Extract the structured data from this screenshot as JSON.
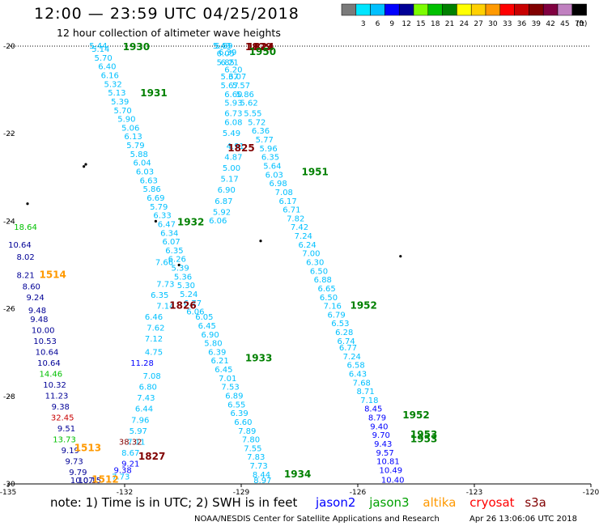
{
  "title": "12:00 — 23:59 UTC 04/25/2018",
  "subtitle": "12 hour collection of altimeter wave heights",
  "legend": {
    "unit": "(ft)",
    "swatches": [
      {
        "color": "#7a7a7a",
        "label": ""
      },
      {
        "color": "#00e5ff",
        "label": "3"
      },
      {
        "color": "#00c0ff",
        "label": "6"
      },
      {
        "color": "#0000ff",
        "label": "9"
      },
      {
        "color": "#000096",
        "label": "12"
      },
      {
        "color": "#7cfc00",
        "label": "15"
      },
      {
        "color": "#00c000",
        "label": "18"
      },
      {
        "color": "#008000",
        "label": "21"
      },
      {
        "color": "#ffff00",
        "label": "24"
      },
      {
        "color": "#ffd000",
        "label": "27"
      },
      {
        "color": "#ff9900",
        "label": "30"
      },
      {
        "color": "#ff0000",
        "label": "33"
      },
      {
        "color": "#c80000",
        "label": "36"
      },
      {
        "color": "#800000",
        "label": "39"
      },
      {
        "color": "#800040",
        "label": "42"
      },
      {
        "color": "#c080c0",
        "label": "45"
      },
      {
        "color": "#000000",
        "label": "70"
      }
    ]
  },
  "chart_data": {
    "type": "scatter",
    "axes": {
      "lon_range": [
        -135,
        -120
      ],
      "lat_range": [
        -30,
        -20
      ],
      "lon_ticks": [
        "-135",
        "-132",
        "-129",
        "-126",
        "-123",
        "-120"
      ],
      "lat_ticks": [
        "-20",
        "-22",
        "-24",
        "-26",
        "-28",
        "-30"
      ]
    },
    "islands": [
      [
        -133.0,
        -22.7
      ],
      [
        -133.05,
        -22.75
      ],
      [
        -131.2,
        -24.0
      ],
      [
        -128.5,
        -24.45
      ],
      [
        -134.5,
        -23.6
      ],
      [
        -124.9,
        -24.8
      ],
      [
        -130.6,
        -25.0
      ]
    ],
    "time_labels": [
      {
        "text": "1930",
        "lon": -131.7,
        "lat": -20.03,
        "color": "#008000"
      },
      {
        "text": "1931",
        "lon": -131.25,
        "lat": -21.15,
        "color": "#008000"
      },
      {
        "text": "1932",
        "lon": -130.3,
        "lat": -24.09,
        "color": "#008000"
      },
      {
        "text": "1933",
        "lon": -128.55,
        "lat": -27.2,
        "color": "#008000"
      },
      {
        "text": "1934",
        "lon": -127.55,
        "lat": -29.85,
        "color": "#008000"
      },
      {
        "text": "1829",
        "lon": -128.55,
        "lat": -20.03,
        "color": "#800000"
      },
      {
        "text": "1824",
        "lon": -128.5,
        "lat": -20.03,
        "color": "#800000"
      },
      {
        "text": "1950",
        "lon": -128.45,
        "lat": -20.2,
        "color": "#008000"
      },
      {
        "text": "1825",
        "lon": -129.0,
        "lat": -22.4,
        "color": "#800000"
      },
      {
        "text": "1951",
        "lon": -127.1,
        "lat": -22.95,
        "color": "#008000"
      },
      {
        "text": "1952",
        "lon": -125.85,
        "lat": -26.0,
        "color": "#008000"
      },
      {
        "text": "1952",
        "lon": -124.5,
        "lat": -28.5,
        "color": "#008000"
      },
      {
        "text": "1953",
        "lon": -124.3,
        "lat": -28.95,
        "color": "#008000"
      },
      {
        "text": "1953",
        "lon": -124.3,
        "lat": -29.05,
        "color": "#008000"
      },
      {
        "text": "1826",
        "lon": -130.5,
        "lat": -26.0,
        "color": "#800000"
      },
      {
        "text": "1827",
        "lon": -131.3,
        "lat": -29.45,
        "color": "#800000"
      },
      {
        "text": "1514",
        "lon": -133.85,
        "lat": -25.3,
        "color": "#ff9900"
      },
      {
        "text": "1513",
        "lon": -132.95,
        "lat": -29.25,
        "color": "#ff9900"
      },
      {
        "text": "1512",
        "lon": -132.5,
        "lat": -29.97,
        "color": "#ff9900"
      }
    ],
    "tracks": [
      {
        "name": "jason3 A",
        "color": "#00c0ff",
        "points": [
          [
            "5.44",
            -132.68,
            -20.03
          ],
          [
            "5.14",
            -132.62,
            -20.13
          ],
          [
            "5.70",
            -132.55,
            -20.33
          ],
          [
            "6.40",
            -132.45,
            -20.53
          ],
          [
            "6.16",
            -132.38,
            -20.73
          ],
          [
            "5.32",
            -132.3,
            -20.93
          ],
          [
            "5.13",
            -132.2,
            -21.13
          ],
          [
            "5.39",
            -132.12,
            -21.33
          ],
          [
            "5.70",
            -132.05,
            -21.53
          ],
          [
            "5.90",
            -131.95,
            -21.73
          ],
          [
            "5.06",
            -131.85,
            -21.93
          ],
          [
            "6.13",
            -131.78,
            -22.13
          ],
          [
            "5.79",
            -131.72,
            -22.33
          ],
          [
            "5.88",
            -131.63,
            -22.53
          ],
          [
            "6.04",
            -131.55,
            -22.73
          ],
          [
            "6.03",
            -131.48,
            -22.93
          ],
          [
            "6.63",
            -131.38,
            -23.13
          ],
          [
            "5.86",
            -131.3,
            -23.33
          ],
          [
            "6.69",
            -131.2,
            -23.53
          ],
          [
            "5.79",
            -131.12,
            -23.73
          ],
          [
            "6.33",
            -131.03,
            -23.93
          ],
          [
            "6.47",
            -130.92,
            -24.13
          ],
          [
            "6.34",
            -130.85,
            -24.33
          ],
          [
            "6.07",
            -130.8,
            -24.53
          ],
          [
            "6.35",
            -130.72,
            -24.73
          ],
          [
            "6.26",
            -130.65,
            -24.93
          ],
          [
            "5.39",
            -130.57,
            -25.13
          ],
          [
            "5.36",
            -130.5,
            -25.33
          ],
          [
            "5.30",
            -130.42,
            -25.53
          ],
          [
            "5.24",
            -130.35,
            -25.73
          ],
          [
            "6.77",
            -130.25,
            -25.93
          ],
          [
            "6.06",
            -130.18,
            -26.13
          ],
          [
            "6.05",
            -129.95,
            -26.25
          ],
          [
            "6.45",
            -129.88,
            -26.45
          ],
          [
            "6.90",
            -129.8,
            -26.65
          ],
          [
            "5.80",
            -129.72,
            -26.85
          ],
          [
            "6.39",
            -129.62,
            -27.05
          ],
          [
            "6.21",
            -129.55,
            -27.25
          ],
          [
            "6.45",
            -129.45,
            -27.45
          ],
          [
            "7.01",
            -129.35,
            -27.65
          ],
          [
            "7.53",
            -129.28,
            -27.85
          ],
          [
            "6.89",
            -129.18,
            -28.05
          ],
          [
            "6.55",
            -129.12,
            -28.25
          ],
          [
            "6.39",
            -129.05,
            -28.45
          ],
          [
            "6.60",
            -128.95,
            -28.65
          ],
          [
            "7.89",
            -128.85,
            -28.85
          ],
          [
            "7.80",
            -128.75,
            -29.05
          ],
          [
            "7.55",
            -128.7,
            -29.25
          ],
          [
            "7.83",
            -128.62,
            -29.45
          ],
          [
            "7.73",
            -128.55,
            -29.65
          ],
          [
            "8.44",
            -128.48,
            -29.85
          ],
          [
            "8.97",
            -128.45,
            -30.03
          ]
        ]
      },
      {
        "name": "jason3 B",
        "color": "#00c0ff",
        "points": [
          [
            "5.49",
            -129.5,
            -20.03
          ],
          [
            "5.59",
            -129.45,
            -20.03
          ],
          [
            "6.05",
            -129.4,
            -20.23
          ],
          [
            "6.39",
            -129.35,
            -20.2
          ],
          [
            "5.85",
            -129.4,
            -20.43
          ],
          [
            "6.21",
            -129.3,
            -20.43
          ],
          [
            "6.20",
            -129.2,
            -20.6
          ],
          [
            "5.37",
            -129.3,
            -20.76
          ],
          [
            "6.07",
            -129.1,
            -20.76
          ],
          [
            "5.67",
            -129.3,
            -20.96
          ],
          [
            "5.57",
            -129.0,
            -20.96
          ],
          [
            "6.60",
            -129.2,
            -21.16
          ],
          [
            "5.86",
            -128.9,
            -21.16
          ],
          [
            "5.93",
            -129.2,
            -21.36
          ],
          [
            "5.62",
            -128.8,
            -21.36
          ],
          [
            "6.73",
            -129.2,
            -21.6
          ],
          [
            "5.55",
            -128.7,
            -21.6
          ],
          [
            "6.08",
            -129.2,
            -21.8
          ],
          [
            "5.72",
            -128.6,
            -21.8
          ],
          [
            "5.49",
            -129.25,
            -22.05
          ],
          [
            "6.36",
            -128.5,
            -22.0
          ],
          [
            "4.91",
            -129.15,
            -22.35
          ],
          [
            "5.77",
            -128.4,
            -22.2
          ],
          [
            "4.87",
            -129.2,
            -22.6
          ],
          [
            "5.96",
            -128.3,
            -22.4
          ],
          [
            "5.00",
            -129.25,
            -22.85
          ],
          [
            "6.35",
            -128.25,
            -22.6
          ],
          [
            "5.17",
            -129.3,
            -23.1
          ],
          [
            "5.64",
            -128.2,
            -22.8
          ],
          [
            "6.90",
            -129.38,
            -23.35
          ],
          [
            "6.03",
            -128.15,
            -23.0
          ],
          [
            "6.87",
            -129.45,
            -23.6
          ],
          [
            "6.98",
            -128.05,
            -23.2
          ],
          [
            "5.92",
            -129.5,
            -23.85
          ],
          [
            "7.08",
            -127.9,
            -23.4
          ],
          [
            "6.06",
            -129.6,
            -24.05
          ],
          [
            "6.17",
            -127.8,
            -23.6
          ],
          [
            "6.71",
            -127.7,
            -23.8
          ],
          [
            "7.82",
            -127.6,
            -24.0
          ],
          [
            "7.42",
            -127.5,
            -24.2
          ],
          [
            "7.24",
            -127.4,
            -24.4
          ],
          [
            "6.24",
            -127.3,
            -24.6
          ],
          [
            "7.00",
            -127.2,
            -24.8
          ],
          [
            "6.30",
            -127.1,
            -25.0
          ],
          [
            "6.50",
            -127.0,
            -25.2
          ],
          [
            "6.88",
            -126.9,
            -25.4
          ],
          [
            "6.65",
            -126.8,
            -25.6
          ],
          [
            "6.50",
            -126.75,
            -25.8
          ],
          [
            "7.16",
            -126.65,
            -26.0
          ],
          [
            "6.79",
            -126.55,
            -26.2
          ],
          [
            "6.53",
            -126.45,
            -26.4
          ],
          [
            "6.28",
            -126.35,
            -26.6
          ],
          [
            "6.74",
            -126.3,
            -26.8
          ],
          [
            "6.77",
            -126.25,
            -26.95
          ],
          [
            "7.24",
            -126.15,
            -27.15
          ],
          [
            "6.58",
            -126.05,
            -27.35
          ],
          [
            "6.43",
            -126.0,
            -27.55
          ],
          [
            "7.68",
            -125.9,
            -27.75
          ],
          [
            "8.71",
            -125.8,
            -27.95
          ],
          [
            "7.18",
            -125.7,
            -28.15
          ]
        ]
      },
      {
        "name": "jason2",
        "color": "#0000ff",
        "points": [
          [
            "8.45",
            -125.6,
            -28.35
          ],
          [
            "8.79",
            -125.5,
            -28.55
          ],
          [
            "9.40",
            -125.45,
            -28.75
          ],
          [
            "9.70",
            -125.4,
            -28.95
          ],
          [
            "9.43",
            -125.35,
            -29.15
          ],
          [
            "9.57",
            -125.3,
            -29.35
          ],
          [
            "10.81",
            -125.22,
            -29.55
          ],
          [
            "10.49",
            -125.15,
            -29.75
          ],
          [
            "10.40",
            -125.1,
            -29.97
          ]
        ]
      },
      {
        "name": "jason3 C",
        "color": "#00c0ff",
        "points": [
          [
            "7.66",
            -130.98,
            -25.0
          ],
          [
            "7.73",
            -130.95,
            -25.5
          ],
          [
            "6.35",
            -131.1,
            -25.75
          ],
          [
            "7.14",
            -130.95,
            -26.0
          ],
          [
            "6.46",
            -131.25,
            -26.25
          ],
          [
            "7.62",
            -131.2,
            -26.5
          ],
          [
            "7.12",
            -131.25,
            -26.75
          ],
          [
            "4.75",
            -131.25,
            -27.05
          ],
          [
            "7.08",
            -131.3,
            -27.6
          ],
          [
            "6.80",
            -131.4,
            -27.85
          ],
          [
            "7.43",
            -131.45,
            -28.1
          ],
          [
            "6.44",
            -131.5,
            -28.35
          ],
          [
            "7.96",
            -131.6,
            -28.6
          ],
          [
            "5.97",
            -131.65,
            -28.85
          ],
          [
            "7.11",
            -131.7,
            -29.1
          ],
          [
            "8.67",
            -131.85,
            -29.35
          ],
          [
            "7.73",
            -132.1,
            -29.9
          ]
        ]
      },
      {
        "name": "jason2 B",
        "color": "#0000ff",
        "points": [
          [
            "11.28",
            -131.55,
            -27.3
          ],
          [
            "9.21",
            -131.85,
            -29.6
          ],
          [
            "9.38",
            -132.05,
            -29.75
          ]
        ]
      },
      {
        "name": "altika/cryosat",
        "color": "#800000",
        "points": [
          [
            "38.32",
            -131.85,
            -29.1
          ]
        ]
      },
      {
        "name": "west track",
        "color": "#000096",
        "points": [
          [
            "10.64",
            -134.7,
            -24.6
          ],
          [
            "8.02",
            -134.55,
            -24.88
          ],
          [
            "8.21",
            -134.55,
            -25.3
          ],
          [
            "8.60",
            -134.4,
            -25.55
          ],
          [
            "9.24",
            -134.3,
            -25.8
          ],
          [
            "9.48",
            -134.25,
            -26.1
          ],
          [
            "9.48",
            -134.2,
            -26.3
          ],
          [
            "10.00",
            -134.1,
            -26.55
          ],
          [
            "10.53",
            -134.05,
            -26.8
          ],
          [
            "10.64",
            -134.0,
            -27.05
          ],
          [
            "10.64",
            -133.95,
            -27.3
          ],
          [
            "10.32",
            -133.8,
            -27.8
          ],
          [
            "11.23",
            -133.75,
            -28.05
          ],
          [
            "9.38",
            -133.65,
            -28.3
          ],
          [
            "9.51",
            -133.5,
            -28.8
          ],
          [
            "9.19",
            -133.4,
            -29.3
          ],
          [
            "9.73",
            -133.3,
            -29.55
          ],
          [
            "9.79",
            -133.2,
            -29.8
          ],
          [
            "10.07",
            -133.1,
            -30.05
          ],
          [
            "10.15",
            -132.9,
            -30.3
          ]
        ]
      },
      {
        "name": "west track light",
        "color": "#00c000",
        "points": [
          [
            "18.64",
            -134.55,
            -24.2
          ],
          [
            "14.46",
            -133.9,
            -27.55
          ],
          [
            "13.73",
            -133.55,
            -29.05
          ]
        ]
      },
      {
        "name": "west track red",
        "color": "#c80000",
        "points": [
          [
            "32.45",
            -133.6,
            -28.55
          ]
        ]
      }
    ]
  },
  "note": {
    "prefix": "note:  1) Time is in UTC;  2) SWH is in feet",
    "satellites": [
      {
        "name": "jason2",
        "color": "#0000ff"
      },
      {
        "name": "jason3",
        "color": "#00a000"
      },
      {
        "name": "altika",
        "color": "#ff9900"
      },
      {
        "name": "cryosat",
        "color": "#ff0000"
      },
      {
        "name": "s3a",
        "color": "#800000"
      }
    ]
  },
  "credit": "NOAA/NESDIS Center for Satellite Applications and Research",
  "credit_time": "Apr 26 13:06:06 UTC 2018"
}
